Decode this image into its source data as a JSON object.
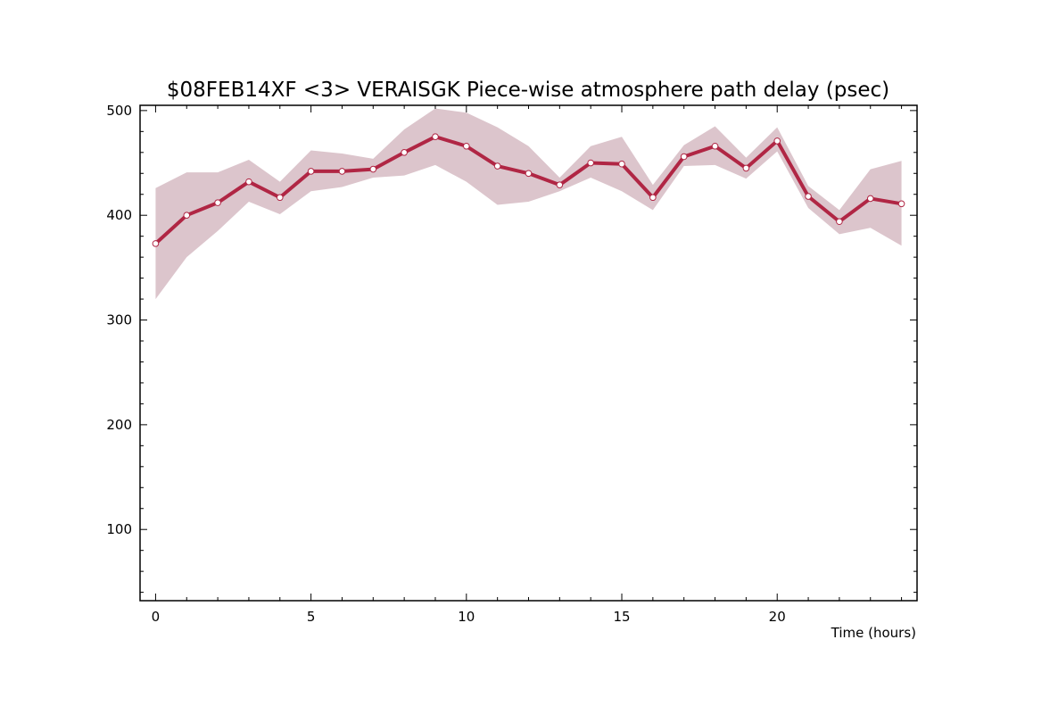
{
  "chart_data": {
    "type": "line",
    "title": "$08FEB14XF <3>  VERAISGK  Piece-wise atmosphere path delay (psec)",
    "xlabel": "Time (hours)",
    "ylabel": "",
    "xlim": [
      -0.5,
      24.5
    ],
    "ylim": [
      32,
      505
    ],
    "x_ticks": [
      0,
      5,
      10,
      15,
      20
    ],
    "y_ticks": [
      100,
      200,
      300,
      400,
      500
    ],
    "x": [
      0,
      1,
      2,
      3,
      4,
      5,
      6,
      7,
      8,
      9,
      10,
      11,
      12,
      13,
      14,
      15,
      16,
      17,
      18,
      19,
      20,
      21,
      22,
      23,
      24
    ],
    "series": [
      {
        "values": [
          373,
          400,
          412,
          432,
          417,
          442,
          442,
          444,
          460,
          475,
          466,
          447,
          440,
          429,
          450,
          449,
          417,
          456,
          466,
          445,
          471,
          418,
          394,
          416,
          411
        ],
        "lower": [
          320,
          360,
          385,
          413,
          401,
          423,
          427,
          436,
          438,
          448,
          432,
          410,
          413,
          423,
          436,
          423,
          405,
          447,
          448,
          435,
          461,
          407,
          382,
          388,
          371
        ],
        "upper": [
          426,
          441,
          441,
          453,
          432,
          462,
          459,
          454,
          482,
          502,
          498,
          484,
          466,
          436,
          466,
          475,
          429,
          467,
          485,
          455,
          484,
          428,
          405,
          444,
          452
        ]
      }
    ],
    "colors": {
      "line": "#b02644",
      "band": "#dcc5cc",
      "marker_fill": "#ffffff"
    },
    "grid": false,
    "legend": "none"
  }
}
